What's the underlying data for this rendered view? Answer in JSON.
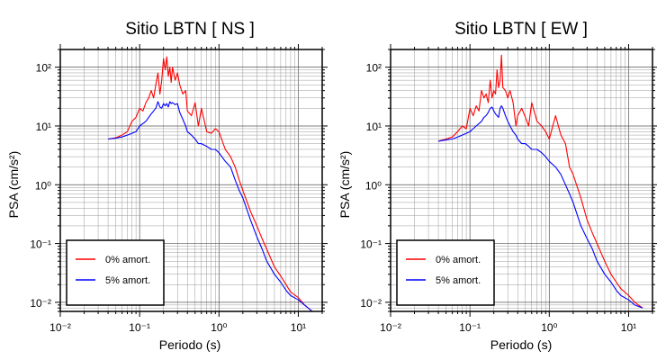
{
  "chart_data": [
    {
      "type": "line",
      "title": "Sitio LBTN [ NS ]",
      "xlabel": "Periodo (s)",
      "ylabel": "PSA (cm/s²)",
      "xscale": "log",
      "yscale": "log",
      "xlim": [
        0.01,
        20
      ],
      "ylim": [
        0.007,
        200
      ],
      "x_ticks": [
        "10⁻²",
        "10⁻¹",
        "10⁰",
        "10¹"
      ],
      "y_ticks": [
        "10⁻²",
        "10⁻¹",
        "10⁰",
        "10¹",
        "10²"
      ],
      "grid": true,
      "legend_position": "bottom-left",
      "series": [
        {
          "name": "0% amort.",
          "color": "#ff0000",
          "x": [
            0.04,
            0.05,
            0.06,
            0.07,
            0.08,
            0.09,
            0.1,
            0.11,
            0.12,
            0.13,
            0.14,
            0.15,
            0.16,
            0.17,
            0.18,
            0.19,
            0.2,
            0.21,
            0.22,
            0.23,
            0.24,
            0.25,
            0.26,
            0.28,
            0.3,
            0.32,
            0.35,
            0.38,
            0.4,
            0.45,
            0.5,
            0.55,
            0.6,
            0.7,
            0.8,
            0.9,
            1.0,
            1.2,
            1.4,
            1.6,
            1.8,
            2.0,
            2.5,
            3.0,
            3.5,
            4.0,
            5.0,
            6.0,
            7.0,
            8.0,
            10.0,
            12.0,
            15.0
          ],
          "y": [
            6.0,
            6.3,
            7.0,
            8.0,
            12.0,
            14.0,
            20.0,
            18.0,
            25.0,
            30.0,
            40.0,
            30.0,
            50.0,
            80.0,
            35.0,
            60.0,
            140.0,
            90.0,
            150.0,
            70.0,
            100.0,
            55.0,
            100.0,
            60.0,
            80.0,
            50.0,
            35.0,
            40.0,
            18.0,
            15.0,
            25.0,
            10.0,
            20.0,
            8.0,
            7.5,
            9.0,
            8.0,
            4.0,
            3.0,
            2.0,
            1.2,
            0.8,
            0.35,
            0.2,
            0.12,
            0.08,
            0.04,
            0.028,
            0.02,
            0.015,
            0.012,
            0.009,
            0.007
          ]
        },
        {
          "name": "5% amort.",
          "color": "#0000ff",
          "x": [
            0.04,
            0.05,
            0.06,
            0.07,
            0.08,
            0.09,
            0.1,
            0.11,
            0.12,
            0.13,
            0.14,
            0.15,
            0.16,
            0.17,
            0.18,
            0.19,
            0.2,
            0.21,
            0.22,
            0.23,
            0.24,
            0.25,
            0.26,
            0.28,
            0.3,
            0.32,
            0.35,
            0.38,
            0.4,
            0.45,
            0.5,
            0.55,
            0.6,
            0.7,
            0.8,
            0.9,
            1.0,
            1.2,
            1.4,
            1.6,
            1.8,
            2.0,
            2.5,
            3.0,
            3.5,
            4.0,
            5.0,
            6.0,
            7.0,
            8.0,
            10.0,
            12.0,
            15.0
          ],
          "y": [
            6.0,
            6.2,
            6.5,
            7.0,
            7.5,
            8.0,
            10.0,
            11.0,
            12.0,
            14.0,
            16.0,
            18.0,
            20.0,
            26.0,
            21.0,
            20.0,
            24.0,
            22.0,
            24.0,
            21.0,
            26.0,
            24.0,
            25.0,
            23.0,
            24.0,
            17.0,
            13.0,
            10.0,
            8.0,
            7.0,
            6.0,
            5.0,
            5.0,
            4.5,
            4.0,
            4.0,
            3.5,
            2.5,
            2.0,
            1.2,
            0.8,
            0.6,
            0.25,
            0.13,
            0.08,
            0.05,
            0.03,
            0.022,
            0.016,
            0.013,
            0.011,
            0.009,
            0.007
          ]
        }
      ]
    },
    {
      "type": "line",
      "title": "Sitio LBTN [ EW ]",
      "xlabel": "Periodo (s)",
      "ylabel": "PSA (cm/s²)",
      "xscale": "log",
      "yscale": "log",
      "xlim": [
        0.01,
        20
      ],
      "ylim": [
        0.007,
        200
      ],
      "x_ticks": [
        "10⁻²",
        "10⁻¹",
        "10⁰",
        "10¹"
      ],
      "y_ticks": [
        "10⁻²",
        "10⁻¹",
        "10⁰",
        "10¹",
        "10²"
      ],
      "grid": true,
      "legend_position": "bottom-left",
      "series": [
        {
          "name": "0% amort.",
          "color": "#ff0000",
          "x": [
            0.04,
            0.05,
            0.06,
            0.07,
            0.08,
            0.09,
            0.1,
            0.11,
            0.12,
            0.13,
            0.14,
            0.15,
            0.16,
            0.17,
            0.18,
            0.19,
            0.2,
            0.21,
            0.22,
            0.23,
            0.24,
            0.25,
            0.26,
            0.28,
            0.3,
            0.32,
            0.35,
            0.38,
            0.4,
            0.45,
            0.5,
            0.55,
            0.6,
            0.7,
            0.8,
            0.9,
            1.0,
            1.2,
            1.4,
            1.6,
            1.8,
            2.0,
            2.5,
            3.0,
            3.5,
            4.0,
            5.0,
            6.0,
            7.0,
            8.0,
            10.0,
            12.0,
            15.0
          ],
          "y": [
            5.5,
            6.0,
            6.5,
            8.0,
            10.0,
            9.0,
            20.0,
            15.0,
            22.0,
            18.0,
            40.0,
            30.0,
            35.0,
            25.0,
            60.0,
            30.0,
            40.0,
            35.0,
            90.0,
            45.0,
            60.0,
            160.0,
            45.0,
            40.0,
            30.0,
            40.0,
            25.0,
            10.0,
            15.0,
            20.0,
            14.0,
            10.0,
            25.0,
            12.0,
            10.0,
            8.0,
            6.0,
            15.0,
            7.0,
            5.0,
            2.0,
            1.5,
            0.6,
            0.25,
            0.15,
            0.1,
            0.05,
            0.03,
            0.022,
            0.017,
            0.013,
            0.01,
            0.008
          ]
        },
        {
          "name": "5% amort.",
          "color": "#0000ff",
          "x": [
            0.04,
            0.05,
            0.06,
            0.07,
            0.08,
            0.09,
            0.1,
            0.11,
            0.12,
            0.13,
            0.14,
            0.15,
            0.16,
            0.17,
            0.18,
            0.19,
            0.2,
            0.21,
            0.22,
            0.23,
            0.24,
            0.25,
            0.26,
            0.28,
            0.3,
            0.32,
            0.35,
            0.38,
            0.4,
            0.45,
            0.5,
            0.55,
            0.6,
            0.7,
            0.8,
            0.9,
            1.0,
            1.2,
            1.4,
            1.6,
            1.8,
            2.0,
            2.5,
            3.0,
            3.5,
            4.0,
            5.0,
            6.0,
            7.0,
            8.0,
            10.0,
            12.0,
            15.0
          ],
          "y": [
            5.5,
            5.8,
            6.0,
            6.5,
            7.0,
            7.5,
            8.0,
            9.0,
            10.0,
            11.0,
            12.0,
            14.0,
            15.0,
            17.0,
            20.0,
            21.0,
            18.0,
            16.0,
            15.0,
            14.0,
            20.0,
            22.0,
            20.0,
            15.0,
            12.0,
            10.0,
            8.0,
            7.0,
            6.0,
            5.0,
            5.0,
            4.5,
            4.0,
            4.0,
            3.5,
            3.0,
            2.5,
            2.0,
            1.5,
            1.0,
            0.7,
            0.5,
            0.2,
            0.12,
            0.08,
            0.05,
            0.03,
            0.022,
            0.016,
            0.013,
            0.011,
            0.009,
            0.008
          ]
        }
      ]
    }
  ]
}
